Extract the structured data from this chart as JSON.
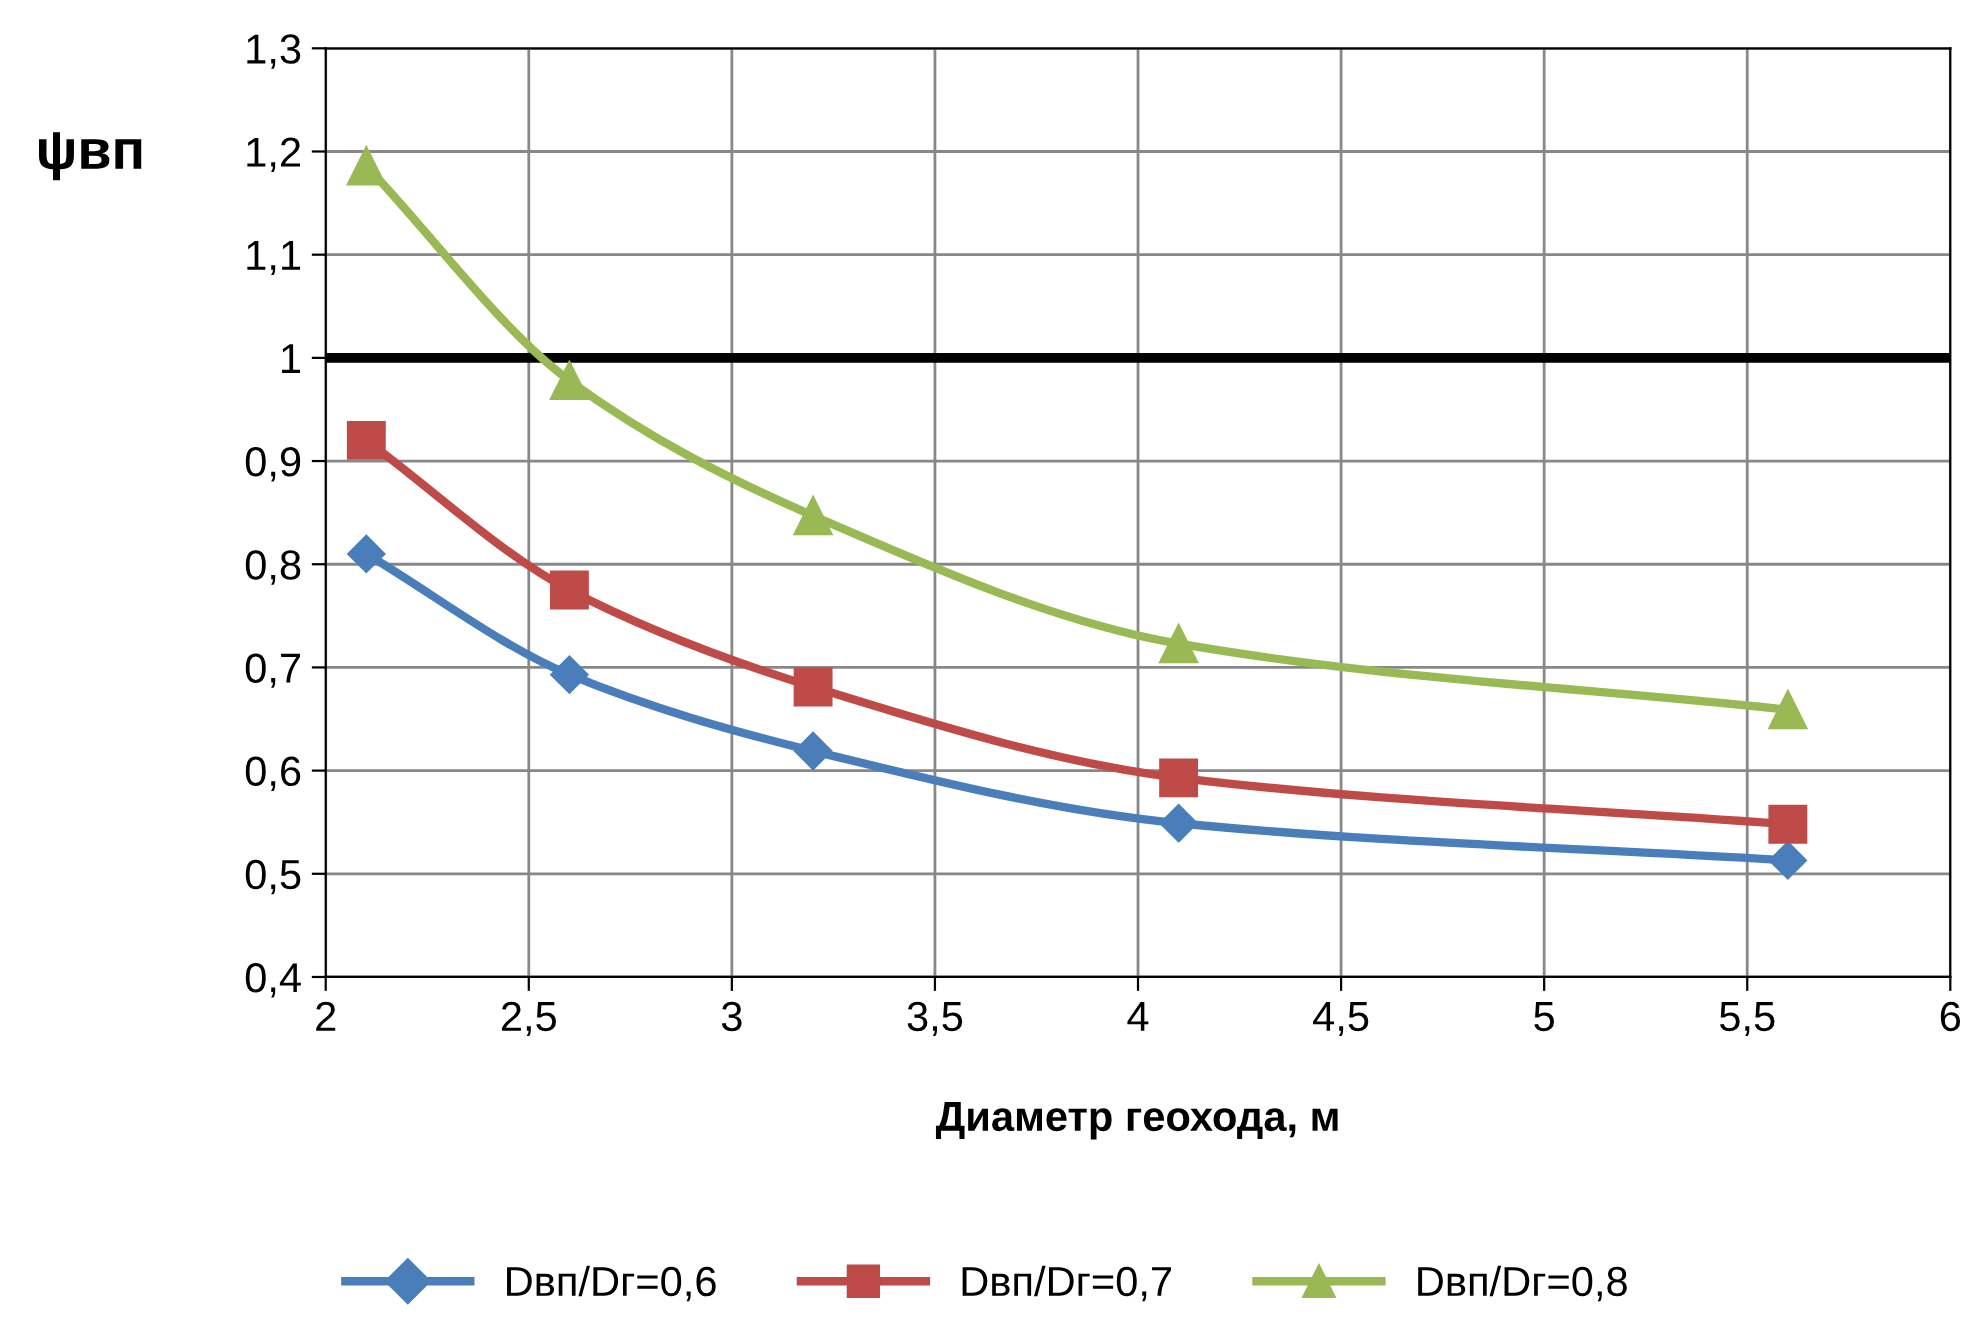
{
  "chart_data": {
    "type": "line",
    "xlabel": "Диаметр геохода, м",
    "ylabel": "ψвп",
    "x": [
      2.1,
      2.6,
      3.2,
      4.1,
      5.6
    ],
    "series": [
      {
        "name": "Dвп/Dг=0,6",
        "color": "#4a7ebb",
        "marker": "diamond",
        "values": [
          0.81,
          0.693,
          0.619,
          0.549,
          0.513
        ]
      },
      {
        "name": "Dвп/Dг=0,7",
        "color": "#be4b48",
        "marker": "square",
        "values": [
          0.92,
          0.775,
          0.681,
          0.593,
          0.548
        ]
      },
      {
        "name": "Dвп/Dг=0,8",
        "color": "#98b954",
        "marker": "triangle",
        "values": [
          1.186,
          0.978,
          0.847,
          0.723,
          0.659
        ]
      }
    ],
    "xlim": [
      2,
      6
    ],
    "xticks": [
      2,
      {
        "value": 2.5,
        "label": "2,5"
      },
      3,
      {
        "value": 3.5,
        "label": "3,5"
      },
      4,
      {
        "value": 4.5,
        "label": "4,5"
      },
      5,
      {
        "value": 5.5,
        "label": "5,5"
      },
      6
    ],
    "ylim": [
      0.4,
      1.3
    ],
    "yticks": [
      {
        "value": 0.4,
        "label": "0,4"
      },
      {
        "value": 0.5,
        "label": "0,5"
      },
      {
        "value": 0.6,
        "label": "0,6"
      },
      {
        "value": 0.7,
        "label": "0,7"
      },
      {
        "value": 0.8,
        "label": "0,8"
      },
      {
        "value": 0.9,
        "label": "0,9"
      },
      1,
      {
        "value": 1.1,
        "label": "1,1"
      },
      {
        "value": 1.2,
        "label": "1,2"
      },
      {
        "value": 1.3,
        "label": "1,3"
      }
    ],
    "ref_lines": [
      {
        "axis": "y",
        "value": 1,
        "color": "#000000",
        "line_style": "solid"
      }
    ],
    "grid": true,
    "legend": "bottom",
    "line_style": "solid"
  }
}
